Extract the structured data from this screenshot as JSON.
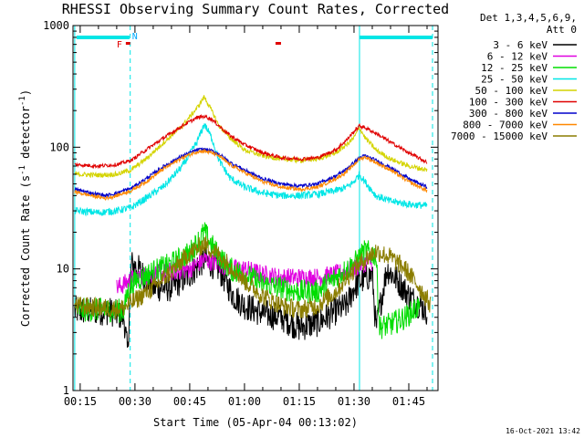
{
  "chart_data": {
    "type": "line",
    "title": "RHESSI Observing Summary Count Rates, Corrected",
    "xlabel": "Start Time (05-Apr-04 00:13:02)",
    "ylabel": "Corrected Count Rate (s^-1 detector^-1)",
    "ylabel_parts": {
      "main": "Corrected Count Rate (s",
      "sup1": "-1",
      "mid": " detector",
      "sup2": "-1",
      "end": ")"
    },
    "y_scale": "log",
    "ylim": [
      1,
      1000
    ],
    "xlim_minutes": [
      13.03,
      113.0
    ],
    "x_ticks": [
      {
        "minute": 15,
        "label": "00:15"
      },
      {
        "minute": 30,
        "label": "00:30"
      },
      {
        "minute": 45,
        "label": "00:45"
      },
      {
        "minute": 60,
        "label": "01:00"
      },
      {
        "minute": 75,
        "label": "01:15"
      },
      {
        "minute": 90,
        "label": "01:30"
      },
      {
        "minute": 105,
        "label": "01:45"
      }
    ],
    "y_ticks": [
      {
        "value": 1,
        "label": "1"
      },
      {
        "value": 10,
        "label": "10"
      },
      {
        "value": 100,
        "label": "100"
      },
      {
        "value": 1000,
        "label": "1000"
      }
    ],
    "legend_header": [
      "Det 1,3,4,5,6,9,",
      "Att 0"
    ],
    "legend_placement": "right",
    "series": [
      {
        "name": "3 - 6 keV",
        "color": "#000000",
        "noise": 0.12,
        "points": [
          [
            13.5,
            4.5
          ],
          [
            23,
            4.5
          ],
          [
            27,
            4.0
          ],
          [
            28,
            2.0
          ],
          [
            29,
            11
          ],
          [
            31,
            10
          ],
          [
            35,
            7
          ],
          [
            40,
            7
          ],
          [
            45,
            9
          ],
          [
            49,
            12
          ],
          [
            53,
            10
          ],
          [
            57,
            6
          ],
          [
            60,
            5
          ],
          [
            65,
            4.3
          ],
          [
            70,
            4.0
          ],
          [
            75,
            3.3
          ],
          [
            80,
            3.6
          ],
          [
            85,
            4.5
          ],
          [
            88,
            5.0
          ],
          [
            90,
            7.0
          ],
          [
            92,
            8
          ],
          [
            95,
            9
          ],
          [
            96,
            3.2
          ],
          [
            99,
            10
          ],
          [
            102,
            8
          ],
          [
            105,
            6
          ],
          [
            110,
            4.5
          ]
        ]
      },
      {
        "name": "6 - 12 keV",
        "color": "#e000e0",
        "noise": 0.08,
        "points": [
          [
            25,
            7
          ],
          [
            27,
            7.5
          ],
          [
            30,
            8.5
          ],
          [
            35,
            9
          ],
          [
            40,
            9.5
          ],
          [
            45,
            10
          ],
          [
            49,
            12
          ],
          [
            53,
            11
          ],
          [
            57,
            10
          ],
          [
            60,
            10
          ],
          [
            65,
            9
          ],
          [
            70,
            8.5
          ],
          [
            75,
            8.5
          ],
          [
            80,
            8.5
          ],
          [
            85,
            9
          ],
          [
            90,
            10
          ],
          [
            92,
            11
          ],
          [
            95,
            11.5
          ]
        ]
      },
      {
        "name": "12 - 25 keV",
        "color": "#00dd00",
        "noise": 0.1,
        "points": [
          [
            13.5,
            4.6
          ],
          [
            24,
            4.6
          ],
          [
            27,
            4.5
          ],
          [
            28,
            6.5
          ],
          [
            30,
            8
          ],
          [
            35,
            9.5
          ],
          [
            40,
            11
          ],
          [
            45,
            13.5
          ],
          [
            49,
            20
          ],
          [
            52,
            14
          ],
          [
            56,
            10
          ],
          [
            60,
            9
          ],
          [
            65,
            7.5
          ],
          [
            70,
            7
          ],
          [
            75,
            6.5
          ],
          [
            80,
            6.5
          ],
          [
            85,
            8.5
          ],
          [
            90,
            11
          ],
          [
            93,
            14
          ],
          [
            96,
            13
          ],
          [
            97,
            3.3
          ],
          [
            100,
            3.5
          ],
          [
            104,
            4.0
          ],
          [
            108,
            5
          ]
        ]
      },
      {
        "name": "25 - 50 keV",
        "color": "#00e6e6",
        "noise": 0.03,
        "points": [
          [
            13.5,
            30
          ],
          [
            20,
            29
          ],
          [
            25,
            30
          ],
          [
            29,
            32
          ],
          [
            33,
            38
          ],
          [
            38,
            48
          ],
          [
            43,
            70
          ],
          [
            47,
            110
          ],
          [
            49,
            155
          ],
          [
            51,
            120
          ],
          [
            53,
            78
          ],
          [
            56,
            56
          ],
          [
            60,
            47
          ],
          [
            65,
            42
          ],
          [
            70,
            40
          ],
          [
            75,
            40
          ],
          [
            80,
            41
          ],
          [
            85,
            44
          ],
          [
            88,
            47
          ],
          [
            90,
            52
          ],
          [
            91.5,
            60
          ],
          [
            93,
            52
          ],
          [
            96,
            40
          ],
          [
            100,
            36
          ],
          [
            105,
            34
          ],
          [
            110,
            33
          ]
        ]
      },
      {
        "name": "50 - 100 keV",
        "color": "#d4d400",
        "noise": 0.02,
        "points": [
          [
            13.5,
            60
          ],
          [
            20,
            59
          ],
          [
            25,
            60
          ],
          [
            29,
            65
          ],
          [
            33,
            80
          ],
          [
            38,
            110
          ],
          [
            43,
            150
          ],
          [
            47,
            210
          ],
          [
            49,
            260
          ],
          [
            51,
            200
          ],
          [
            53,
            150
          ],
          [
            56,
            120
          ],
          [
            60,
            95
          ],
          [
            65,
            85
          ],
          [
            70,
            80
          ],
          [
            75,
            78
          ],
          [
            80,
            80
          ],
          [
            85,
            90
          ],
          [
            88,
            105
          ],
          [
            90,
            120
          ],
          [
            91.5,
            145
          ],
          [
            93,
            120
          ],
          [
            96,
            95
          ],
          [
            100,
            80
          ],
          [
            105,
            70
          ],
          [
            110,
            65
          ]
        ]
      },
      {
        "name": "100 - 300 keV",
        "color": "#e00000",
        "noise": 0.015,
        "points": [
          [
            13.5,
            72
          ],
          [
            20,
            70
          ],
          [
            25,
            72
          ],
          [
            29,
            78
          ],
          [
            33,
            95
          ],
          [
            38,
            120
          ],
          [
            43,
            150
          ],
          [
            47,
            175
          ],
          [
            49,
            180
          ],
          [
            51,
            170
          ],
          [
            53,
            150
          ],
          [
            56,
            125
          ],
          [
            60,
            105
          ],
          [
            65,
            90
          ],
          [
            70,
            82
          ],
          [
            75,
            80
          ],
          [
            80,
            82
          ],
          [
            85,
            95
          ],
          [
            88,
            115
          ],
          [
            90,
            135
          ],
          [
            91.5,
            150
          ],
          [
            93,
            145
          ],
          [
            96,
            130
          ],
          [
            100,
            110
          ],
          [
            105,
            90
          ],
          [
            110,
            75
          ]
        ]
      },
      {
        "name": "300 - 800 keV",
        "color": "#0000cc",
        "noise": 0.015,
        "points": [
          [
            13.5,
            45
          ],
          [
            18,
            42
          ],
          [
            22,
            40
          ],
          [
            25,
            42
          ],
          [
            29,
            46
          ],
          [
            33,
            55
          ],
          [
            38,
            70
          ],
          [
            43,
            85
          ],
          [
            47,
            95
          ],
          [
            49,
            96
          ],
          [
            51,
            93
          ],
          [
            53,
            88
          ],
          [
            56,
            75
          ],
          [
            60,
            65
          ],
          [
            65,
            55
          ],
          [
            70,
            50
          ],
          [
            75,
            48
          ],
          [
            80,
            50
          ],
          [
            85,
            58
          ],
          [
            88,
            66
          ],
          [
            90,
            75
          ],
          [
            91.5,
            82
          ],
          [
            93,
            85
          ],
          [
            96,
            78
          ],
          [
            100,
            68
          ],
          [
            105,
            55
          ],
          [
            110,
            47
          ]
        ]
      },
      {
        "name": "800 - 7000 keV",
        "color": "#ff8800",
        "noise": 0.015,
        "points": [
          [
            13.5,
            43
          ],
          [
            18,
            40
          ],
          [
            22,
            38
          ],
          [
            25,
            40
          ],
          [
            29,
            44
          ],
          [
            33,
            52
          ],
          [
            38,
            67
          ],
          [
            43,
            82
          ],
          [
            47,
            92
          ],
          [
            49,
            93
          ],
          [
            51,
            90
          ],
          [
            53,
            85
          ],
          [
            56,
            72
          ],
          [
            60,
            62
          ],
          [
            65,
            52
          ],
          [
            70,
            47
          ],
          [
            75,
            45
          ],
          [
            80,
            47
          ],
          [
            85,
            55
          ],
          [
            88,
            63
          ],
          [
            90,
            72
          ],
          [
            91.5,
            80
          ],
          [
            93,
            83
          ],
          [
            96,
            75
          ],
          [
            100,
            65
          ],
          [
            105,
            52
          ],
          [
            110,
            44
          ]
        ]
      },
      {
        "name": "7000 - 15000 keV",
        "color": "#8b7d00",
        "noise": 0.08,
        "points": [
          [
            13.5,
            5.0
          ],
          [
            20,
            4.8
          ],
          [
            25,
            4.7
          ],
          [
            27,
            4.8
          ],
          [
            30,
            5.5
          ],
          [
            35,
            7
          ],
          [
            40,
            9.5
          ],
          [
            45,
            13.5
          ],
          [
            49,
            16
          ],
          [
            53,
            13
          ],
          [
            57,
            10
          ],
          [
            60,
            8
          ],
          [
            65,
            6
          ],
          [
            70,
            5
          ],
          [
            75,
            4.6
          ],
          [
            80,
            5
          ],
          [
            85,
            6.5
          ],
          [
            90,
            10
          ],
          [
            93,
            12
          ],
          [
            96,
            14
          ],
          [
            100,
            12.5
          ],
          [
            104,
            10
          ],
          [
            108,
            7
          ],
          [
            111,
            5
          ]
        ]
      }
    ],
    "annotations": {
      "saa_intervals": [
        [
          14,
          28.5
        ],
        [
          91.5,
          111.5
        ]
      ],
      "night_boundaries": [
        28.7,
        111.5
      ],
      "day_boundaries": [
        13.5,
        91.5
      ],
      "flare_markers": [
        [
          27.5,
          28.7
        ],
        [
          68.5,
          70
        ]
      ],
      "flare_label": "F",
      "night_label": "N"
    }
  },
  "timestamp": "16-Oct-2021 13:42"
}
